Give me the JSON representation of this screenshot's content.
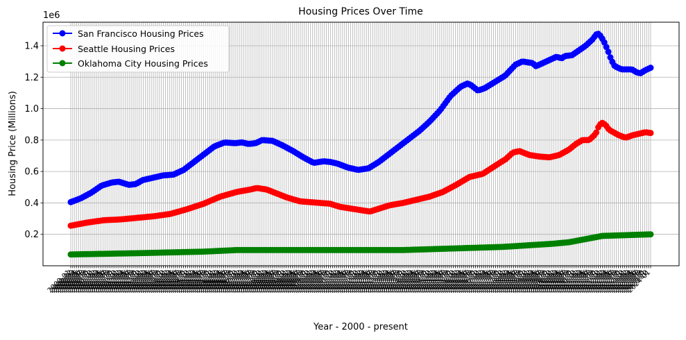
{
  "chart_data": {
    "type": "line",
    "title": "Housing Prices Over Time",
    "xlabel": "Year - 2000 - present",
    "ylabel": "Housing Price (Millions)",
    "y_offset_label": "1e6",
    "ylim": [
      0,
      1.55
    ],
    "yticks": [
      0.2,
      0.4,
      0.6,
      0.8,
      1.0,
      1.2,
      1.4
    ],
    "grid": true,
    "legend_position": "top-left",
    "x_tick_count": 289,
    "x_tick_label_start": "2000-01",
    "x": {
      "start_year": 2000,
      "start_month": 1,
      "count": 289
    },
    "series": [
      {
        "name": "San Francisco Housing Prices",
        "color": "#0000ff",
        "anchors": [
          [
            0,
            0.405
          ],
          [
            6,
            0.43
          ],
          [
            12,
            0.465
          ],
          [
            18,
            0.51
          ],
          [
            24,
            0.53
          ],
          [
            28,
            0.535
          ],
          [
            34,
            0.515
          ],
          [
            38,
            0.52
          ],
          [
            42,
            0.545
          ],
          [
            48,
            0.56
          ],
          [
            54,
            0.575
          ],
          [
            60,
            0.58
          ],
          [
            66,
            0.61
          ],
          [
            72,
            0.66
          ],
          [
            78,
            0.71
          ],
          [
            84,
            0.76
          ],
          [
            90,
            0.785
          ],
          [
            96,
            0.78
          ],
          [
            100,
            0.785
          ],
          [
            104,
            0.775
          ],
          [
            108,
            0.78
          ],
          [
            112,
            0.8
          ],
          [
            118,
            0.795
          ],
          [
            124,
            0.765
          ],
          [
            130,
            0.73
          ],
          [
            136,
            0.69
          ],
          [
            142,
            0.655
          ],
          [
            148,
            0.665
          ],
          [
            152,
            0.66
          ],
          [
            156,
            0.65
          ],
          [
            162,
            0.625
          ],
          [
            168,
            0.61
          ],
          [
            174,
            0.62
          ],
          [
            180,
            0.66
          ],
          [
            186,
            0.71
          ],
          [
            192,
            0.76
          ],
          [
            198,
            0.81
          ],
          [
            204,
            0.86
          ],
          [
            210,
            0.92
          ],
          [
            216,
            0.99
          ],
          [
            222,
            1.08
          ],
          [
            228,
            1.14
          ],
          [
            232,
            1.16
          ],
          [
            234,
            1.15
          ],
          [
            238,
            1.115
          ],
          [
            242,
            1.13
          ],
          [
            248,
            1.17
          ],
          [
            254,
            1.21
          ],
          [
            260,
            1.28
          ],
          [
            264,
            1.3
          ],
          [
            270,
            1.29
          ],
          [
            272,
            1.27
          ],
          [
            276,
            1.29
          ],
          [
            280,
            1.31
          ],
          [
            284,
            1.33
          ],
          [
            287,
            1.32
          ],
          [
            289,
            1.335
          ],
          [
            293,
            1.34
          ],
          [
            297,
            1.37
          ],
          [
            301,
            1.4
          ],
          [
            305,
            1.44
          ],
          [
            307,
            1.47
          ],
          [
            308,
            1.48
          ],
          [
            310,
            1.46
          ],
          [
            312,
            1.42
          ],
          [
            314,
            1.37
          ],
          [
            316,
            1.31
          ],
          [
            318,
            1.27
          ],
          [
            322,
            1.25
          ],
          [
            328,
            1.25
          ],
          [
            331,
            1.23
          ],
          [
            333,
            1.225
          ],
          [
            336,
            1.245
          ],
          [
            339,
            1.26
          ]
        ]
      },
      {
        "name": "Seattle Housing Prices",
        "color": "#ff0000",
        "anchors": [
          [
            0,
            0.255
          ],
          [
            10,
            0.275
          ],
          [
            20,
            0.29
          ],
          [
            30,
            0.295
          ],
          [
            40,
            0.305
          ],
          [
            50,
            0.315
          ],
          [
            60,
            0.33
          ],
          [
            70,
            0.36
          ],
          [
            80,
            0.395
          ],
          [
            90,
            0.44
          ],
          [
            100,
            0.47
          ],
          [
            108,
            0.485
          ],
          [
            112,
            0.495
          ],
          [
            118,
            0.485
          ],
          [
            124,
            0.46
          ],
          [
            130,
            0.435
          ],
          [
            138,
            0.41
          ],
          [
            144,
            0.405
          ],
          [
            150,
            0.4
          ],
          [
            156,
            0.395
          ],
          [
            162,
            0.375
          ],
          [
            168,
            0.365
          ],
          [
            174,
            0.355
          ],
          [
            180,
            0.345
          ],
          [
            186,
            0.365
          ],
          [
            192,
            0.385
          ],
          [
            200,
            0.4
          ],
          [
            208,
            0.42
          ],
          [
            216,
            0.44
          ],
          [
            224,
            0.47
          ],
          [
            232,
            0.515
          ],
          [
            240,
            0.565
          ],
          [
            248,
            0.585
          ],
          [
            256,
            0.64
          ],
          [
            262,
            0.68
          ],
          [
            266,
            0.72
          ],
          [
            270,
            0.73
          ],
          [
            276,
            0.705
          ],
          [
            282,
            0.695
          ],
          [
            288,
            0.69
          ],
          [
            294,
            0.705
          ],
          [
            300,
            0.74
          ],
          [
            304,
            0.775
          ],
          [
            308,
            0.8
          ],
          [
            312,
            0.8
          ],
          [
            316,
            0.84
          ],
          [
            318,
            0.895
          ],
          [
            320,
            0.91
          ],
          [
            322,
            0.895
          ],
          [
            324,
            0.865
          ],
          [
            330,
            0.83
          ],
          [
            334,
            0.815
          ],
          [
            338,
            0.83
          ],
          [
            342,
            0.84
          ],
          [
            346,
            0.85
          ],
          [
            349,
            0.845
          ]
        ]
      },
      {
        "name": "Oklahoma City Housing Prices",
        "color": "#008000",
        "anchors": [
          [
            0,
            0.072
          ],
          [
            40,
            0.08
          ],
          [
            80,
            0.09
          ],
          [
            100,
            0.1
          ],
          [
            160,
            0.1
          ],
          [
            200,
            0.1
          ],
          [
            230,
            0.11
          ],
          [
            260,
            0.12
          ],
          [
            290,
            0.14
          ],
          [
            300,
            0.15
          ],
          [
            310,
            0.17
          ],
          [
            320,
            0.19
          ],
          [
            349,
            0.2
          ]
        ],
        "anchor_span": 349
      }
    ]
  }
}
